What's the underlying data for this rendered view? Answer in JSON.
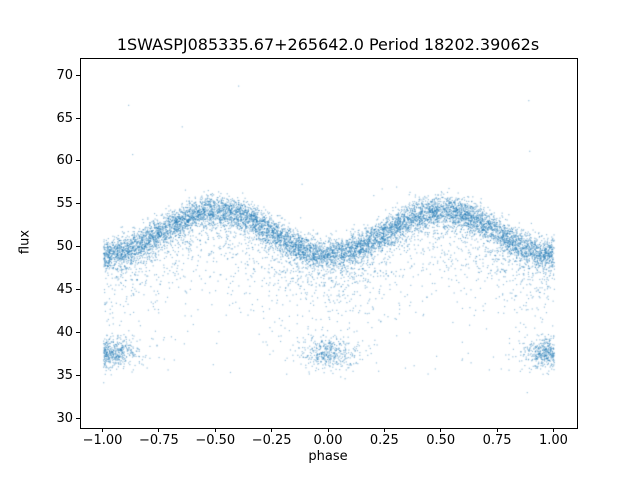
{
  "chart_data": {
    "type": "scatter",
    "title": "1SWASPJ085335.67+265642.0 Period 18202.39062s",
    "xlabel": "phase",
    "ylabel": "flux",
    "xlim": [
      -1.1,
      1.1
    ],
    "ylim": [
      29,
      72
    ],
    "x_ticks": [
      -1.0,
      -0.75,
      -0.5,
      -0.25,
      0.0,
      0.25,
      0.5,
      0.75,
      1.0
    ],
    "x_tick_labels": [
      "−1.00",
      "−0.75",
      "−0.50",
      "−0.25",
      "0.00",
      "0.25",
      "0.50",
      "0.75",
      "1.00"
    ],
    "y_ticks": [
      30,
      35,
      40,
      45,
      50,
      55,
      60,
      65,
      70
    ],
    "y_tick_labels": [
      "30",
      "35",
      "40",
      "45",
      "50",
      "55",
      "60",
      "65",
      "70"
    ],
    "grid": false,
    "legend": "none",
    "marker_color": "#1f77b4",
    "marker_alpha": 0.45,
    "marker_size_px": 1.2,
    "n_points": 12000,
    "seed": 20240817,
    "model": {
      "description": "phase-folded eclipsing-binary light curve shown over two cycles; dense band follows base(p) = band_mean - band_amplitude*cos(2*pi*p); maxima ~54.4 flux at phase ±0.5, band minima ~49.3 at phase 0 and ±1; diffuse downward scatter to ~40; dense deep-eclipse clumps near flux 37.7 at phases 0 and ±1; sparse outliers between flux 31 and 70",
      "band_fraction": 0.68,
      "band_mean": 51.85,
      "band_amplitude": 2.55,
      "band_sigma": 0.85,
      "tail_fraction": 0.22,
      "tail_scale": 3.0,
      "tail_floor": 35.2,
      "eclipse_fraction": 0.1,
      "eclipse_centers": [
        -1,
        0,
        1
      ],
      "eclipse_flux": 37.7,
      "eclipse_sigma": 0.9,
      "eclipse_phase_sigma": 0.07,
      "outliers": 34,
      "outlier_flux_range": [
        31,
        70.2
      ]
    }
  }
}
